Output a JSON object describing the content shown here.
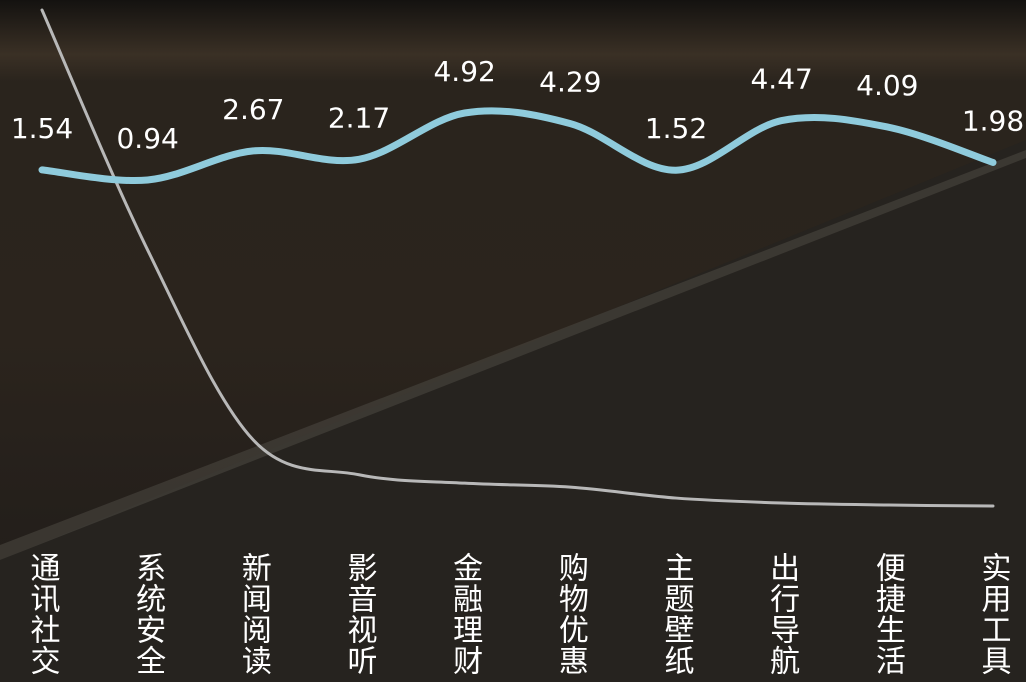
{
  "chart_data": {
    "type": "line",
    "categories": [
      "通讯社交",
      "系统安全",
      "新闻阅读",
      "影音视听",
      "金融理财",
      "购物优惠",
      "主题壁纸",
      "出行导航",
      "便捷生活",
      "实用工具"
    ],
    "series": [
      {
        "color": "#8fcbdc",
        "values": [
          1.54,
          0.94,
          2.67,
          2.17,
          4.92,
          4.29,
          1.52,
          4.47,
          4.09,
          1.98
        ]
      },
      {
        "color": "#b8b8b8",
        "values": [
          100,
          51.6,
          13.3,
          6.3,
          4.6,
          3.8,
          1.6,
          0.6,
          0.2,
          0
        ]
      }
    ]
  }
}
